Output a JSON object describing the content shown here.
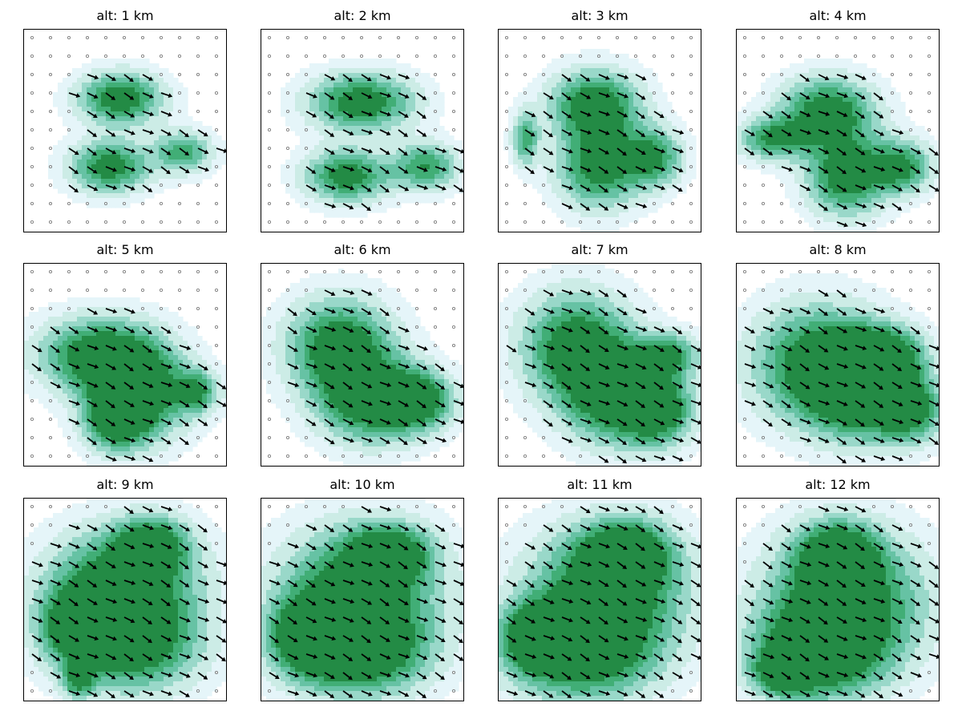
{
  "chart_data": [
    {
      "type": "filled-contour-quiver",
      "title": "alt: 1 km",
      "altitude_km": 1,
      "grid": [
        11,
        11
      ],
      "blobs": [
        [
          4.8,
          3.3,
          1.6,
          1.0,
          1.0
        ],
        [
          4.2,
          7.0,
          1.5,
          1.0,
          0.95
        ],
        [
          8.2,
          6.2,
          1.1,
          0.8,
          0.75
        ]
      ]
    },
    {
      "type": "filled-contour-quiver",
      "title": "alt: 2 km",
      "altitude_km": 2,
      "grid": [
        11,
        11
      ],
      "blobs": [
        [
          5.0,
          3.5,
          2.0,
          1.1,
          1.0
        ],
        [
          4.2,
          7.5,
          1.6,
          1.0,
          0.95
        ],
        [
          8.5,
          7.0,
          1.2,
          0.9,
          0.8
        ]
      ]
    },
    {
      "type": "filled-contour-quiver",
      "title": "alt: 3 km",
      "altitude_km": 3,
      "grid": [
        11,
        11
      ],
      "blobs": [
        [
          4.8,
          3.6,
          1.7,
          1.3,
          1.0
        ],
        [
          5.0,
          7.0,
          1.6,
          1.6,
          0.95
        ],
        [
          8.0,
          6.5,
          1.1,
          1.1,
          0.8
        ],
        [
          1.0,
          5.5,
          0.5,
          1.0,
          0.7
        ]
      ]
    },
    {
      "type": "filled-contour-quiver",
      "title": "alt: 4 km",
      "altitude_km": 4,
      "grid": [
        11,
        11
      ],
      "blobs": [
        [
          4.5,
          4.0,
          1.8,
          1.3,
          1.0
        ],
        [
          5.5,
          7.5,
          1.5,
          1.5,
          1.0
        ],
        [
          8.5,
          7.0,
          1.2,
          1.0,
          0.85
        ],
        [
          1.5,
          5.5,
          1.3,
          0.8,
          0.8
        ]
      ]
    },
    {
      "type": "filled-contour-quiver",
      "title": "alt: 5 km",
      "altitude_km": 5,
      "grid": [
        11,
        11
      ],
      "blobs": [
        [
          3.5,
          4.5,
          2.2,
          1.4,
          1.0
        ],
        [
          6.0,
          6.5,
          1.8,
          1.8,
          1.0
        ],
        [
          4.5,
          8.0,
          1.2,
          1.2,
          0.9
        ],
        [
          9.0,
          6.5,
          0.8,
          0.8,
          0.7
        ]
      ]
    },
    {
      "type": "filled-contour-quiver",
      "title": "alt: 6 km",
      "altitude_km": 6,
      "grid": [
        11,
        11
      ],
      "blobs": [
        [
          3.8,
          4.0,
          2.0,
          1.8,
          1.0
        ],
        [
          5.5,
          7.0,
          2.0,
          1.6,
          1.0
        ],
        [
          8.2,
          7.0,
          1.3,
          1.1,
          0.85
        ]
      ]
    },
    {
      "type": "filled-contour-quiver",
      "title": "alt: 7 km",
      "altitude_km": 7,
      "grid": [
        11,
        11
      ],
      "blobs": [
        [
          3.8,
          4.0,
          2.1,
          2.0,
          1.0
        ],
        [
          6.0,
          6.8,
          2.0,
          1.8,
          1.0
        ],
        [
          8.3,
          7.5,
          1.3,
          1.3,
          0.85
        ],
        [
          8.8,
          4.5,
          1.2,
          0.8,
          0.75
        ]
      ]
    },
    {
      "type": "filled-contour-quiver",
      "title": "alt: 8 km",
      "altitude_km": 8,
      "grid": [
        11,
        11
      ],
      "blobs": [
        [
          4.0,
          5.0,
          2.5,
          2.2,
          1.0
        ],
        [
          6.5,
          6.5,
          2.0,
          1.8,
          1.0
        ],
        [
          9.0,
          7.5,
          1.2,
          1.2,
          0.8
        ],
        [
          7.5,
          4.5,
          1.5,
          1.0,
          0.85
        ]
      ]
    },
    {
      "type": "filled-contour-quiver",
      "title": "alt: 9 km",
      "altitude_km": 9,
      "grid": [
        11,
        11
      ],
      "blobs": [
        [
          5.0,
          4.0,
          2.8,
          2.0,
          1.0
        ],
        [
          5.5,
          7.5,
          2.5,
          1.8,
          1.0
        ],
        [
          2.5,
          6.5,
          1.5,
          1.4,
          0.9
        ],
        [
          6.5,
          2.0,
          1.3,
          1.0,
          0.85
        ],
        [
          2.5,
          9.5,
          0.6,
          0.6,
          0.7
        ]
      ]
    },
    {
      "type": "filled-contour-quiver",
      "title": "alt: 10 km",
      "altitude_km": 10,
      "grid": [
        11,
        11
      ],
      "blobs": [
        [
          5.0,
          4.5,
          3.0,
          2.4,
          1.0
        ],
        [
          5.0,
          8.0,
          2.5,
          1.6,
          1.0
        ],
        [
          2.0,
          7.0,
          1.5,
          1.5,
          0.85
        ],
        [
          6.5,
          2.5,
          1.5,
          1.0,
          0.85
        ]
      ]
    },
    {
      "type": "filled-contour-quiver",
      "title": "alt: 11 km",
      "altitude_km": 11,
      "grid": [
        11,
        11
      ],
      "blobs": [
        [
          5.5,
          4.5,
          3.0,
          2.4,
          1.0
        ],
        [
          4.0,
          8.0,
          2.8,
          1.8,
          1.0
        ],
        [
          1.5,
          7.0,
          1.2,
          1.2,
          0.8
        ],
        [
          6.5,
          2.5,
          1.6,
          1.2,
          0.9
        ]
      ]
    },
    {
      "type": "filled-contour-quiver",
      "title": "alt: 12 km",
      "altitude_km": 12,
      "grid": [
        11,
        11
      ],
      "blobs": [
        [
          5.5,
          5.0,
          3.0,
          2.5,
          1.0
        ],
        [
          4.0,
          8.0,
          2.5,
          1.8,
          1.0
        ],
        [
          2.0,
          9.0,
          1.0,
          0.8,
          0.8
        ],
        [
          5.0,
          2.5,
          1.5,
          1.2,
          0.85
        ]
      ]
    }
  ],
  "colors": {
    "levels": [
      "#e5f5f9",
      "#ccece6",
      "#99d8c9",
      "#66c2a4",
      "#41ae76",
      "#238b45"
    ],
    "arrow": "#000000",
    "calm_dot": "#808080",
    "frame": "#000000"
  }
}
